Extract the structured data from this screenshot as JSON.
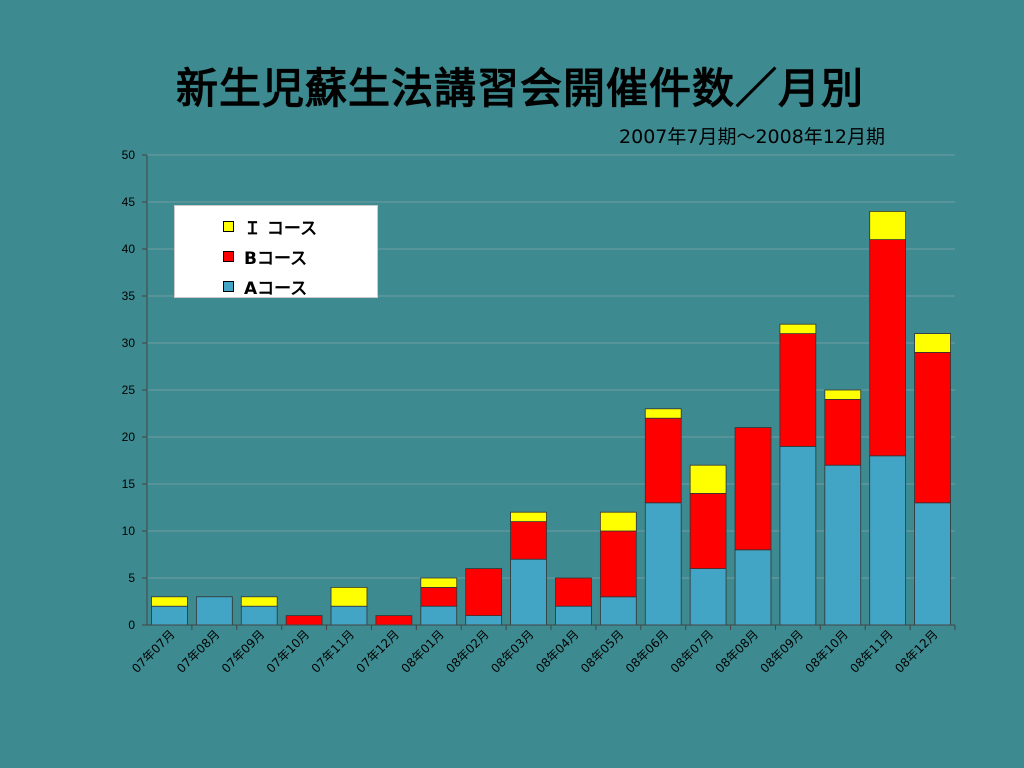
{
  "chart_data": {
    "type": "bar",
    "stacked": true,
    "title": "新生児蘇生法講習会開催件数／月別",
    "subtitle": "2007年7月期～2008年12月期",
    "categories": [
      "07年07月",
      "07年08月",
      "07年09月",
      "07年10月",
      "07年11月",
      "07年12月",
      "08年01月",
      "08年02月",
      "08年03月",
      "08年04月",
      "08年05月",
      "08年06月",
      "08年07月",
      "08年08月",
      "08年09月",
      "08年10月",
      "08年11月",
      "08年12月"
    ],
    "series": [
      {
        "name": "Aコース",
        "color": "#43a5c6",
        "values": [
          2,
          3,
          2,
          0,
          2,
          0,
          2,
          1,
          7,
          2,
          3,
          13,
          6,
          8,
          19,
          17,
          18,
          13
        ]
      },
      {
        "name": "Bコース",
        "color": "#ff0000",
        "values": [
          0,
          0,
          0,
          1,
          0,
          1,
          2,
          5,
          4,
          3,
          7,
          9,
          8,
          13,
          12,
          7,
          23,
          16
        ]
      },
      {
        "name": "Ｉ コース",
        "color": "#ffff00",
        "values": [
          1,
          0,
          1,
          0,
          2,
          0,
          1,
          0,
          1,
          0,
          2,
          1,
          3,
          0,
          1,
          1,
          3,
          2
        ]
      }
    ],
    "yticks": [
      0,
      5,
      10,
      15,
      20,
      25,
      30,
      35,
      40,
      45,
      50
    ],
    "ylim": [
      0,
      50
    ],
    "grid": true,
    "legend_position": "top-left"
  }
}
